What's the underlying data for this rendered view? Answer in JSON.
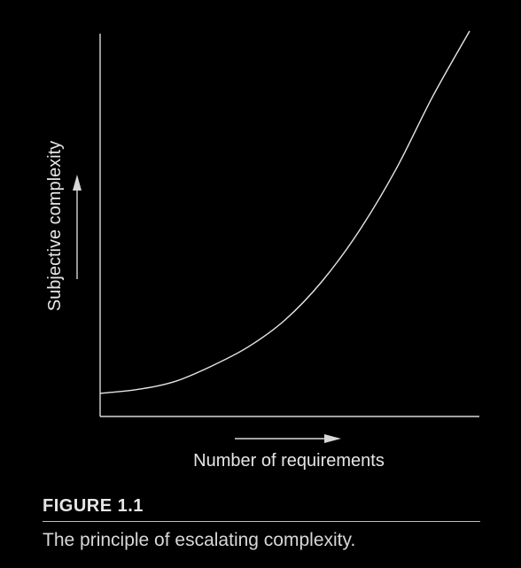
{
  "chart_data": {
    "type": "line",
    "title": "",
    "xlabel": "Number of requirements",
    "ylabel": "Subjective complexity",
    "grid": false,
    "legend": "none",
    "axis_ticks": false,
    "series": [
      {
        "description": "escalating curve: starts low and nearly flat, rises steeply at the right",
        "x": [
          0,
          0.1,
          0.2,
          0.3,
          0.4,
          0.5,
          0.6,
          0.7,
          0.8,
          0.9,
          1.0
        ],
        "y": [
          0.06,
          0.07,
          0.09,
          0.13,
          0.18,
          0.25,
          0.35,
          0.48,
          0.64,
          0.83,
          1.0
        ]
      }
    ]
  },
  "figure": {
    "label": "FIGURE 1.1",
    "caption": "The principle of escalating complexity."
  },
  "colors": {
    "background": "#000000",
    "line": "#e6e6e6"
  }
}
